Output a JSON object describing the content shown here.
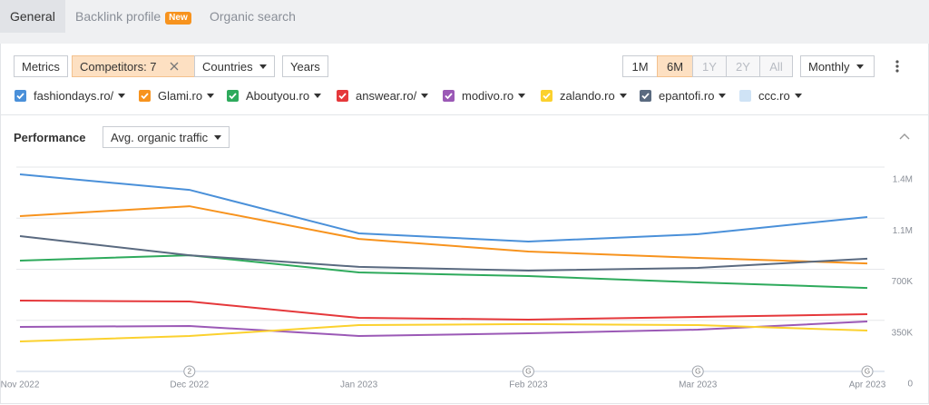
{
  "tabs": [
    "General",
    "Backlink profile",
    "Organic search"
  ],
  "badge": "New",
  "controls": {
    "metrics": "Metrics",
    "competitors": "Competitors: 7",
    "countries": "Countries",
    "years": "Years",
    "ranges": [
      "1M",
      "6M",
      "1Y",
      "2Y",
      "All"
    ],
    "interval": "Monthly"
  },
  "performance": {
    "title": "Performance",
    "metric": "Avg. organic traffic"
  },
  "chart_data": {
    "type": "line",
    "categories": [
      "Nov 2022",
      "Dec 2022",
      "Jan 2023",
      "Feb 2023",
      "Mar 2023",
      "Apr 2023"
    ],
    "series": [
      {
        "name": "fashiondays.ro/",
        "color": "#4a90d9",
        "visible": true,
        "values": [
          1350000,
          1244000,
          946000,
          890000,
          940000,
          1058000
        ]
      },
      {
        "name": "Glami.ro",
        "color": "#f7931e",
        "visible": true,
        "values": [
          1064000,
          1132000,
          908000,
          821000,
          778000,
          740000
        ]
      },
      {
        "name": "Aboutyou.ro",
        "color": "#2eaa5c",
        "visible": true,
        "values": [
          759000,
          796000,
          678000,
          653000,
          610000,
          572000
        ]
      },
      {
        "name": "answear.ro/",
        "color": "#e5383b",
        "visible": true,
        "values": [
          485000,
          479000,
          367000,
          355000,
          373000,
          392000
        ]
      },
      {
        "name": "modivo.ro",
        "color": "#9b59b6",
        "visible": true,
        "values": [
          305000,
          311000,
          243000,
          261000,
          286000,
          342000
        ]
      },
      {
        "name": "zalando.ro",
        "color": "#fbd12e",
        "visible": true,
        "values": [
          205000,
          243000,
          317000,
          324000,
          317000,
          280000
        ]
      },
      {
        "name": "epantofi.ro",
        "color": "#5a6a80",
        "visible": true,
        "values": [
          927000,
          796000,
          716000,
          691000,
          709000,
          772000
        ]
      },
      {
        "name": "ccc.ro",
        "color": "#cfe3f5",
        "visible": false,
        "values": [
          null,
          null,
          null,
          null,
          null,
          null
        ]
      }
    ],
    "ylim": [
      0,
      1400000
    ],
    "yticks": [
      {
        "value": 1400000,
        "label": "1.4M"
      },
      {
        "value": 1050000,
        "label": "1.1M"
      },
      {
        "value": 700000,
        "label": "700K"
      },
      {
        "value": 350000,
        "label": "350K"
      },
      0
    ],
    "grid": true,
    "annotations": [
      {
        "x": "Dec 2022",
        "text": "2"
      },
      {
        "x": "Feb 2023",
        "text": "G"
      },
      {
        "x": "Mar 2023",
        "text": "G"
      },
      {
        "x": "Apr 2023",
        "text": "G"
      }
    ]
  }
}
